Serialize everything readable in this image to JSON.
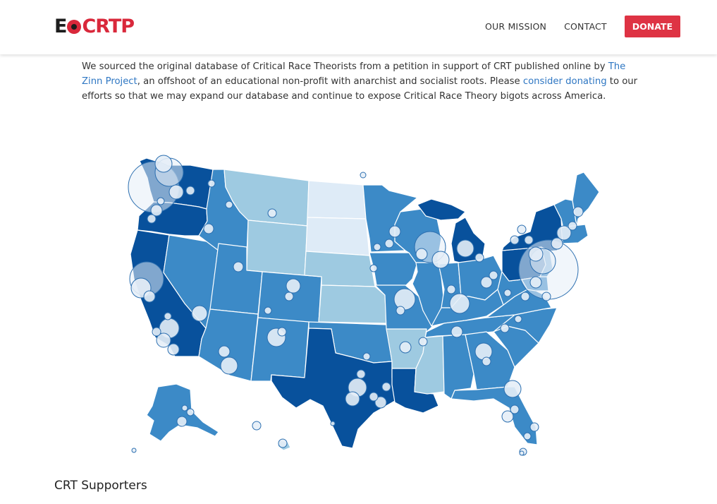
{
  "header": {
    "logo": {
      "part1": "E",
      "part2": "CRTP"
    },
    "nav": {
      "mission": "OUR MISSION",
      "contact": "CONTACT",
      "donate": "DONATE"
    }
  },
  "intro": {
    "text1": "We sourced the original database of Critical Race Theorists from a petition in support of CRT published online by ",
    "link1": "The Zinn Project",
    "text2": ", an offshoot of an educational non-profit with anarchist and socialist roots. Please ",
    "link2": "consider donating",
    "text3": " to our efforts so that we may expand our database and continue to expose Critical Race Theory bigots across America."
  },
  "map": {
    "type": "choropleth-bubble-map",
    "region": "United States",
    "colors": {
      "darkest": "#08519c",
      "dark": "#3c8ac7",
      "medium": "#9ecae1",
      "light": "#deebf7",
      "bubble_fill": "#e6eef7",
      "bubble_stroke": "#2c6fb0",
      "state_border": "#ffffff"
    },
    "darkest_states": [
      "Washington",
      "Oregon",
      "California",
      "Texas",
      "Louisiana",
      "Michigan",
      "New York",
      "Pennsylvania"
    ],
    "medium_states": [
      "Montana",
      "Wyoming",
      "Nebraska",
      "Kansas",
      "Arkansas",
      "Mississippi"
    ],
    "light_states": [
      "North Dakota",
      "South Dakota"
    ]
  },
  "section": {
    "title": "CRT Supporters"
  }
}
